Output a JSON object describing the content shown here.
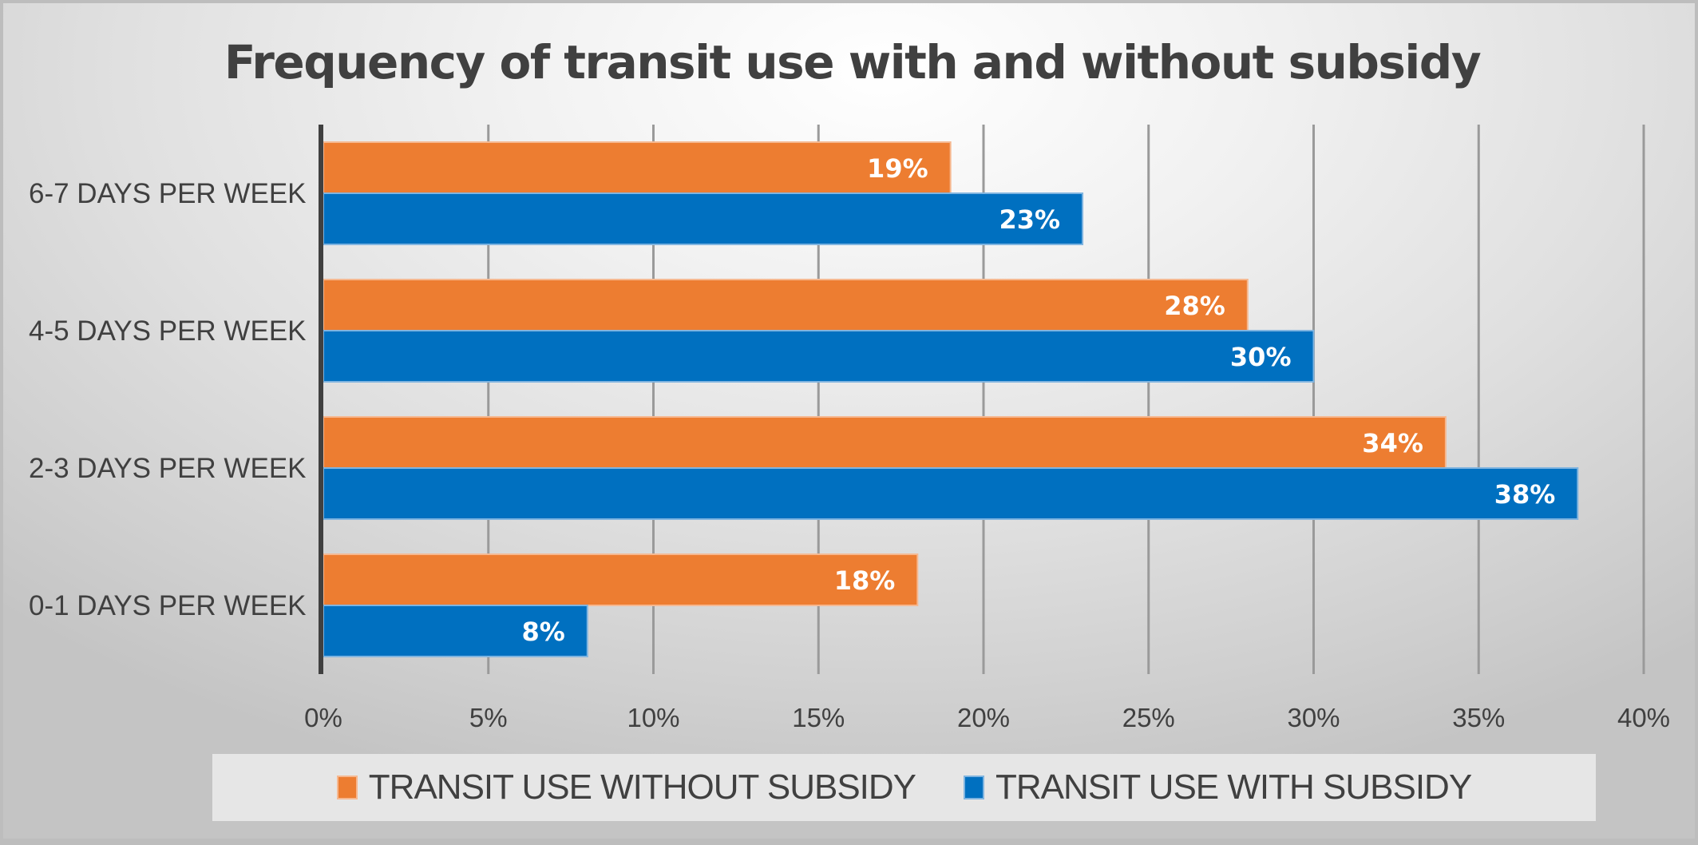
{
  "chart_data": {
    "type": "bar",
    "orientation": "horizontal",
    "title": "Frequency of transit use with and without subsidy",
    "xlabel": "",
    "ylabel": "",
    "xlim": [
      0,
      40
    ],
    "x_ticks": [
      0,
      5,
      10,
      15,
      20,
      25,
      30,
      35,
      40
    ],
    "x_tick_labels": [
      "0%",
      "5%",
      "10%",
      "15%",
      "20%",
      "25%",
      "30%",
      "35%",
      "40%"
    ],
    "grid": "vertical",
    "legend_position": "bottom",
    "categories": [
      "6-7 DAYS PER WEEK",
      "4-5 DAYS PER WEEK",
      "2-3 DAYS PER WEEK",
      "0-1 DAYS PER WEEK"
    ],
    "series": [
      {
        "name": "TRANSIT USE WITHOUT SUBSIDY",
        "color": "#ED7D31",
        "values": [
          19,
          28,
          34,
          18
        ],
        "labels": [
          "19%",
          "28%",
          "34%",
          "18%"
        ]
      },
      {
        "name": "TRANSIT USE WITH SUBSIDY",
        "color": "#0070C0",
        "values": [
          23,
          30,
          38,
          8
        ],
        "labels": [
          "23%",
          "30%",
          "38%",
          "8%"
        ]
      }
    ]
  }
}
